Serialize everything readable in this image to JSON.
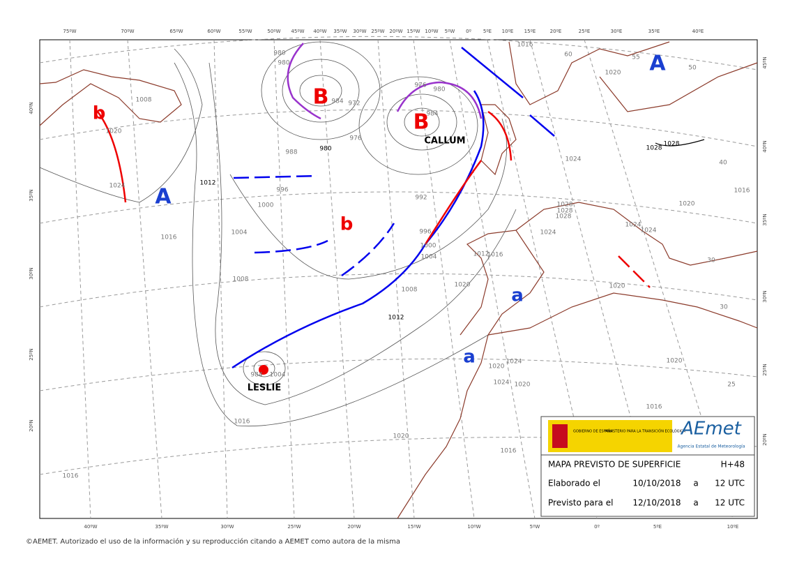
{
  "map": {
    "top_lon_labels": [
      "75ºW",
      "70ºW",
      "65ºW",
      "60ºW",
      "55ºW",
      "50ºW",
      "45ºW",
      "40ºW",
      "35ºW",
      "30ºW",
      "25ºW",
      "20ºW",
      "15ºW",
      "10ºW",
      "5ºW",
      "0º",
      "5ºE",
      "10ºE",
      "15ºE",
      "20ºE",
      "25ºE",
      "30ºE",
      "35ºE",
      "40ºE"
    ],
    "bottom_lon_labels": [
      "40ºW",
      "35ºW",
      "30ºW",
      "25ºW",
      "20ºW",
      "15ºW",
      "10ºW",
      "5ºW",
      "0º",
      "5ºE",
      "10ºE"
    ],
    "left_lat_labels": [
      "40ºN",
      "35ºN",
      "30ºN",
      "25ºN",
      "20ºN"
    ],
    "right_lat_labels": [
      "45ºN",
      "40ºN",
      "35ºN",
      "30ºN",
      "25ºN",
      "20ºN"
    ],
    "isobar_labels": [
      "980",
      "980",
      "984",
      "972",
      "980",
      "976",
      "984",
      "980",
      "976",
      "988",
      "996",
      "1000",
      "1004",
      "1008",
      "1012",
      "1012",
      "1016",
      "1016",
      "1004",
      "984",
      "992",
      "996",
      "1000",
      "1004",
      "1008",
      "1012",
      "1016",
      "1020",
      "1020",
      "1024",
      "1024",
      "1020",
      "1024",
      "1028",
      "1028",
      "1028",
      "1028",
      "1028",
      "1024",
      "1016",
      "1020",
      "1008",
      "1020",
      "1024",
      "1016",
      "1020",
      "1016",
      "1016",
      "1020",
      "1020",
      "1024",
      "1024",
      "1020",
      "1016",
      "55",
      "50",
      "60",
      "40",
      "30",
      "25",
      "30"
    ],
    "high_labels": [
      "A",
      "A",
      "a",
      "a"
    ],
    "low_labels": [
      "B",
      "B",
      "b",
      "b"
    ],
    "storm_names": [
      "CALLUM",
      "LESLIE"
    ]
  },
  "info_box": {
    "government": "GOBIERNO DE ESPAÑA",
    "ministry": "MINISTERIO PARA LA TRANSICIÓN ECOLÓGICA",
    "logo": "AEmet",
    "agency": "Agencia Estatal de Meteorología",
    "title": "MAPA PREVISTO DE SUPERFICIE",
    "lead_time": "H+48",
    "rows": [
      [
        "Elaborado el",
        "10/10/2018",
        "a",
        "12 UTC"
      ],
      [
        "Previsto para el",
        "12/10/2018",
        "a",
        "12 UTC"
      ]
    ]
  },
  "footer": "©AEMET. Autorizado el uso de la información y su reproducción citando a AEMET como autora de la misma"
}
